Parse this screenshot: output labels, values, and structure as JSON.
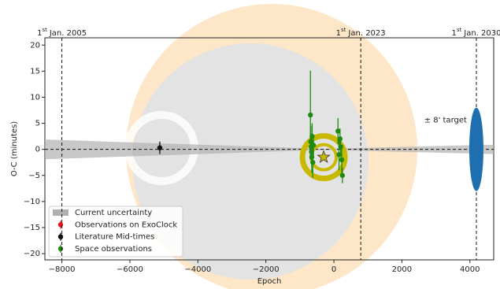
{
  "chart_data": {
    "type": "scatter",
    "xlabel": "Epoch",
    "ylabel": "O-C (minutes)",
    "xlim": [
      -8500,
      4700
    ],
    "ylim": [
      -21.2,
      21.4
    ],
    "xticks": [
      {
        "value": -8000,
        "label": "−8000"
      },
      {
        "value": -6000,
        "label": "−6000"
      },
      {
        "value": -4000,
        "label": "−4000"
      },
      {
        "value": -2000,
        "label": "−2000"
      },
      0,
      2000,
      4000
    ],
    "yticks": [
      {
        "value": -20,
        "label": "−20"
      },
      {
        "value": -15,
        "label": "−15"
      },
      {
        "value": -10,
        "label": "−10"
      },
      {
        "value": -5,
        "label": "−5"
      },
      0,
      5,
      10,
      15,
      20
    ],
    "legend": "lower left",
    "zero_line": true,
    "epoch_markers": [
      {
        "value": -8000,
        "ordinal": "1",
        "suffix": "st",
        "text": "Jan. 2005"
      },
      {
        "value": 790,
        "ordinal": "1",
        "suffix": "st",
        "text": "Jan. 2023"
      },
      {
        "value": 4190,
        "ordinal": "1",
        "suffix": "st",
        "text": "Jan. 2030"
      }
    ],
    "uncertainty": {
      "name": "Current uncertainty",
      "color": "#b0b0b0",
      "x": [
        -8500,
        -300,
        4700
      ],
      "upper": [
        1.9,
        0.1,
        0.9
      ],
      "lower": [
        -1.9,
        -0.1,
        -0.9
      ]
    },
    "series": [
      {
        "name": "Observations on ExoClock",
        "color": "#e8161b",
        "x": [],
        "values": [],
        "errors": []
      },
      {
        "name": "Literature Mid-times",
        "color": "#111111",
        "x": [
          -5120
        ],
        "values": [
          0.3
        ],
        "errors": [
          1.2
        ]
      },
      {
        "name": "Space observations",
        "color": "#1f8a12",
        "x": [
          -690,
          -680,
          -670,
          -660,
          -650,
          -640,
          -620,
          -600,
          120,
          150,
          180,
          200,
          230,
          250
        ],
        "values": [
          6.6,
          1.5,
          0.5,
          -0.5,
          -1.5,
          2.5,
          -2.5,
          0.8,
          3.5,
          -1.0,
          2.0,
          0.5,
          -2.0,
          -5.0
        ],
        "errors": [
          8.5,
          3,
          2.5,
          2,
          3,
          2.5,
          3,
          2,
          2.5,
          3,
          2,
          2,
          2.5,
          1.5
        ]
      }
    ],
    "prediction": {
      "x": -300,
      "y": -1.5,
      "color": "#c8b800"
    },
    "target": {
      "x": 4190,
      "y": 0,
      "half_height": 8,
      "label": "± 8' target",
      "color": "#1f6fb0"
    }
  }
}
